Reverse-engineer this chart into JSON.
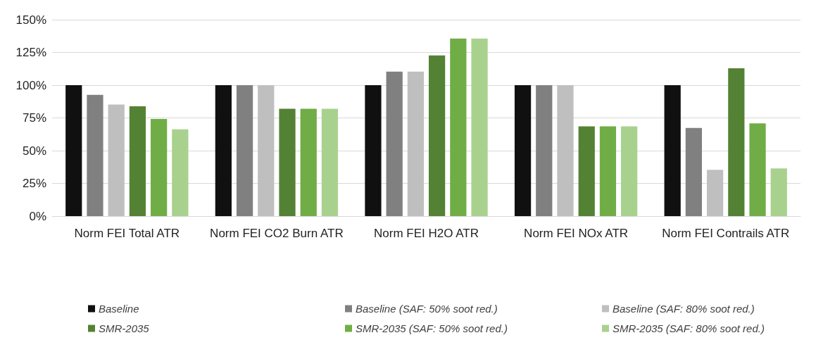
{
  "chart_data": {
    "type": "bar",
    "categories": [
      "Norm FEI Total ATR",
      "Norm FEI CO2 Burn ATR",
      "Norm FEI H2O ATR",
      "Norm FEI NOx ATR",
      "Norm FEI Contrails ATR"
    ],
    "series": [
      {
        "name": "Baseline",
        "color": "#101010",
        "values": [
          100,
          100,
          100,
          100,
          100
        ]
      },
      {
        "name": "Baseline (SAF: 50% soot red.)",
        "color": "#808080",
        "values": [
          92.6,
          100,
          110.4,
          100,
          67.3
        ]
      },
      {
        "name": "Baseline (SAF: 80% soot red.)",
        "color": "#bfbfbf",
        "values": [
          85.2,
          100,
          110.4,
          100,
          35.4
        ]
      },
      {
        "name": "SMR-2035",
        "color": "#548235",
        "values": [
          83.9,
          82,
          122.7,
          68.5,
          112.9
        ]
      },
      {
        "name": "SMR-2035 (SAF: 50% soot red.)",
        "color": "#70ad47",
        "values": [
          74.2,
          82,
          135.6,
          68.5,
          70.8
        ]
      },
      {
        "name": "SMR-2035 (SAF: 80% soot red.)",
        "color": "#a9d18e",
        "values": [
          66.3,
          82,
          135.6,
          68.5,
          36.4
        ]
      }
    ],
    "ylim": [
      0,
      150
    ],
    "yticks": [
      {
        "value": 0,
        "label": "0%"
      },
      {
        "value": 25,
        "label": "25%"
      },
      {
        "value": 50,
        "label": "50%"
      },
      {
        "value": 75,
        "label": "75%"
      },
      {
        "value": 100,
        "label": "100%"
      },
      {
        "value": 125,
        "label": "125%"
      },
      {
        "value": 150,
        "label": "150%"
      }
    ],
    "grid": "y",
    "legend": "bottom"
  }
}
